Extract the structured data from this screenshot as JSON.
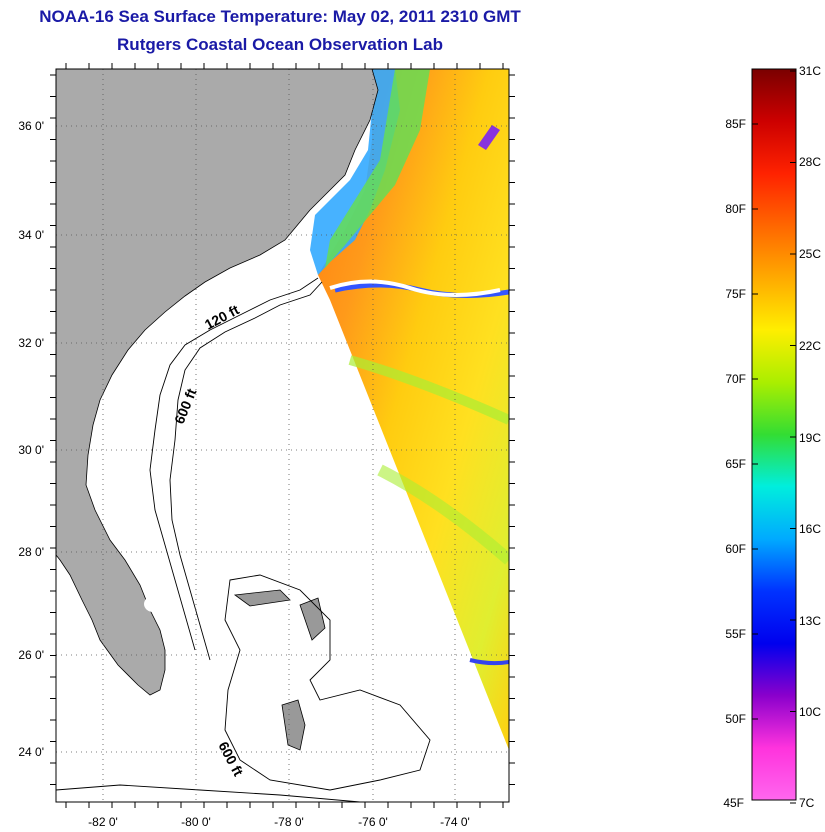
{
  "title": "NOAA-16 Sea Surface Temperature:  May 02, 2011 2310 GMT",
  "subtitle": "Rutgers Coastal Ocean Observation Lab",
  "map": {
    "lat_labels": [
      "36 0'",
      "34 0'",
      "32 0'",
      "30 0'",
      "28 0'",
      "26 0'",
      "24 0'"
    ],
    "lon_labels": [
      "-82 0'",
      "-80 0'",
      "-78 0'",
      "-76 0'",
      "-74 0'"
    ],
    "contour_labels": [
      "120 ft",
      "600 ft",
      "600 ft"
    ],
    "colors": {
      "land": "#aaaaaa",
      "grid": "#000000"
    }
  },
  "colorbar": {
    "fahrenheit_labels": [
      "85F",
      "80F",
      "75F",
      "70F",
      "65F",
      "60F",
      "55F",
      "50F",
      "45F"
    ],
    "celsius_labels": [
      "31C",
      "28C",
      "25C",
      "22C",
      "19C",
      "16C",
      "13C",
      "10C",
      "7C"
    ],
    "stops": [
      "#7a0000",
      "#cc0000",
      "#ff2200",
      "#ff6600",
      "#ffaa00",
      "#ffee00",
      "#aaee00",
      "#33dd33",
      "#00eedd",
      "#00aaff",
      "#0033ff",
      "#0000ee",
      "#8a00cc",
      "#ff33dd",
      "#ff66ee"
    ]
  }
}
